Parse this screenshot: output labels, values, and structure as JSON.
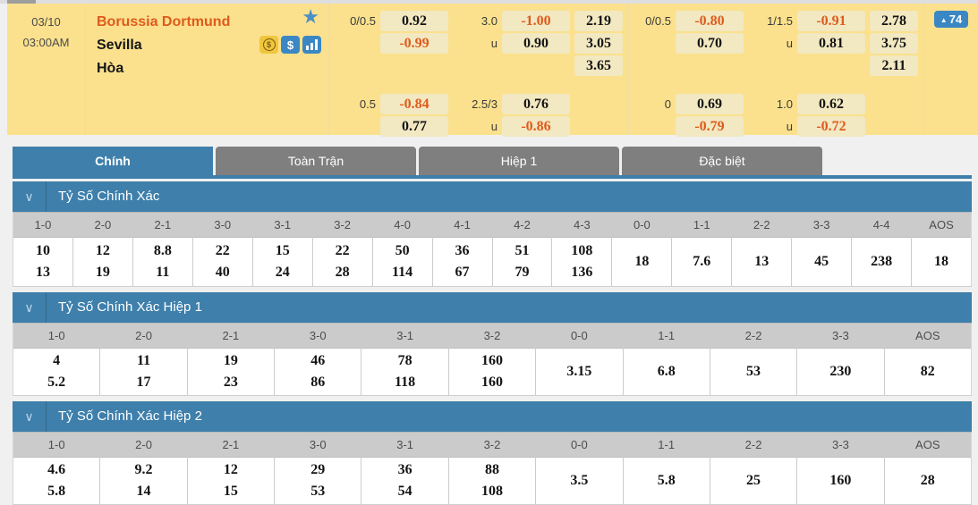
{
  "match": {
    "date": "03/10",
    "time": "03:00AM",
    "home_team": "Borussia Dortmund",
    "away_team": "Sevilla",
    "draw_label": "Hòa",
    "markets_badge": {
      "trend_icon": "▲",
      "count": "74"
    },
    "icons": {
      "favorite_star": "★",
      "coin_glyph": "$",
      "dollar_glyph": "$",
      "chevron_glyph": "∨"
    }
  },
  "odds_blocks": [
    {
      "hdp_line": "0/0.5",
      "hdp_home": "0.92",
      "hdp_away": "-0.99",
      "ou_line": "3.0",
      "ou_over": "-1.00",
      "u1": "u",
      "ou_under": "0.90",
      "x12_home": "2.19",
      "x12_away": "3.05",
      "x12_draw": "3.65",
      "hdp2_line": "0.5",
      "hdp2_home": "-0.84",
      "hdp2_away": "0.77",
      "ou2_line": "2.5/3",
      "ou2_over": "0.76",
      "u2": "u",
      "ou2_under": "-0.86"
    },
    {
      "hdp_line": "0/0.5",
      "hdp_home": "-0.80",
      "hdp_away": "0.70",
      "ou_line": "1/1.5",
      "ou_over": "-0.91",
      "u1": "u",
      "ou_under": "0.81",
      "x12_home": "2.78",
      "x12_away": "3.75",
      "x12_draw": "2.11",
      "hdp2_line": "0",
      "hdp2_home": "0.69",
      "hdp2_away": "-0.79",
      "ou2_line": "1.0",
      "ou2_over": "0.62",
      "u2": "u",
      "ou2_under": "-0.72"
    }
  ],
  "tabs": [
    {
      "label": "Chính",
      "active": true
    },
    {
      "label": "Toàn Trận",
      "active": false
    },
    {
      "label": "Hiệp 1",
      "active": false
    },
    {
      "label": "Đặc biệt",
      "active": false
    }
  ],
  "score_tables": [
    {
      "title": "Tỷ Số Chính Xác",
      "columns": [
        {
          "score": "1-0",
          "values": [
            "10",
            "13"
          ]
        },
        {
          "score": "2-0",
          "values": [
            "12",
            "19"
          ]
        },
        {
          "score": "2-1",
          "values": [
            "8.8",
            "11"
          ]
        },
        {
          "score": "3-0",
          "values": [
            "22",
            "40"
          ]
        },
        {
          "score": "3-1",
          "values": [
            "15",
            "24"
          ]
        },
        {
          "score": "3-2",
          "values": [
            "22",
            "28"
          ]
        },
        {
          "score": "4-0",
          "values": [
            "50",
            "114"
          ]
        },
        {
          "score": "4-1",
          "values": [
            "36",
            "67"
          ]
        },
        {
          "score": "4-2",
          "values": [
            "51",
            "79"
          ]
        },
        {
          "score": "4-3",
          "values": [
            "108",
            "136"
          ]
        },
        {
          "score": "0-0",
          "values": [
            "18"
          ]
        },
        {
          "score": "1-1",
          "values": [
            "7.6"
          ]
        },
        {
          "score": "2-2",
          "values": [
            "13"
          ]
        },
        {
          "score": "3-3",
          "values": [
            "45"
          ]
        },
        {
          "score": "4-4",
          "values": [
            "238"
          ]
        },
        {
          "score": "AOS",
          "values": [
            "18"
          ]
        }
      ]
    },
    {
      "title": "Tỷ Số Chính Xác Hiệp 1",
      "columns": [
        {
          "score": "1-0",
          "values": [
            "4",
            "5.2"
          ]
        },
        {
          "score": "2-0",
          "values": [
            "11",
            "17"
          ]
        },
        {
          "score": "2-1",
          "values": [
            "19",
            "23"
          ]
        },
        {
          "score": "3-0",
          "values": [
            "46",
            "86"
          ]
        },
        {
          "score": "3-1",
          "values": [
            "78",
            "118"
          ]
        },
        {
          "score": "3-2",
          "values": [
            "160",
            "160"
          ]
        },
        {
          "score": "0-0",
          "values": [
            "3.15"
          ]
        },
        {
          "score": "1-1",
          "values": [
            "6.8"
          ]
        },
        {
          "score": "2-2",
          "values": [
            "53"
          ]
        },
        {
          "score": "3-3",
          "values": [
            "230"
          ]
        },
        {
          "score": "AOS",
          "values": [
            "82"
          ]
        }
      ]
    },
    {
      "title": "Tỷ Số Chính Xác Hiệp 2",
      "columns": [
        {
          "score": "1-0",
          "values": [
            "4.6",
            "5.8"
          ]
        },
        {
          "score": "2-0",
          "values": [
            "9.2",
            "14"
          ]
        },
        {
          "score": "2-1",
          "values": [
            "12",
            "15"
          ]
        },
        {
          "score": "3-0",
          "values": [
            "29",
            "53"
          ]
        },
        {
          "score": "3-1",
          "values": [
            "36",
            "54"
          ]
        },
        {
          "score": "3-2",
          "values": [
            "88",
            "108"
          ]
        },
        {
          "score": "0-0",
          "values": [
            "3.5"
          ]
        },
        {
          "score": "1-1",
          "values": [
            "5.8"
          ]
        },
        {
          "score": "2-2",
          "values": [
            "25"
          ]
        },
        {
          "score": "3-3",
          "values": [
            "160"
          ]
        },
        {
          "score": "AOS",
          "values": [
            "28"
          ]
        }
      ]
    }
  ],
  "colors": {
    "card_bg": "#fbe18d",
    "odds_cell_bg": "#f2e8c1",
    "accent_blue": "#3e7fab",
    "icon_blue": "#3a87c4",
    "negative_orange": "#df5a1d",
    "inactive_tab_gray": "#7f7f7f"
  }
}
